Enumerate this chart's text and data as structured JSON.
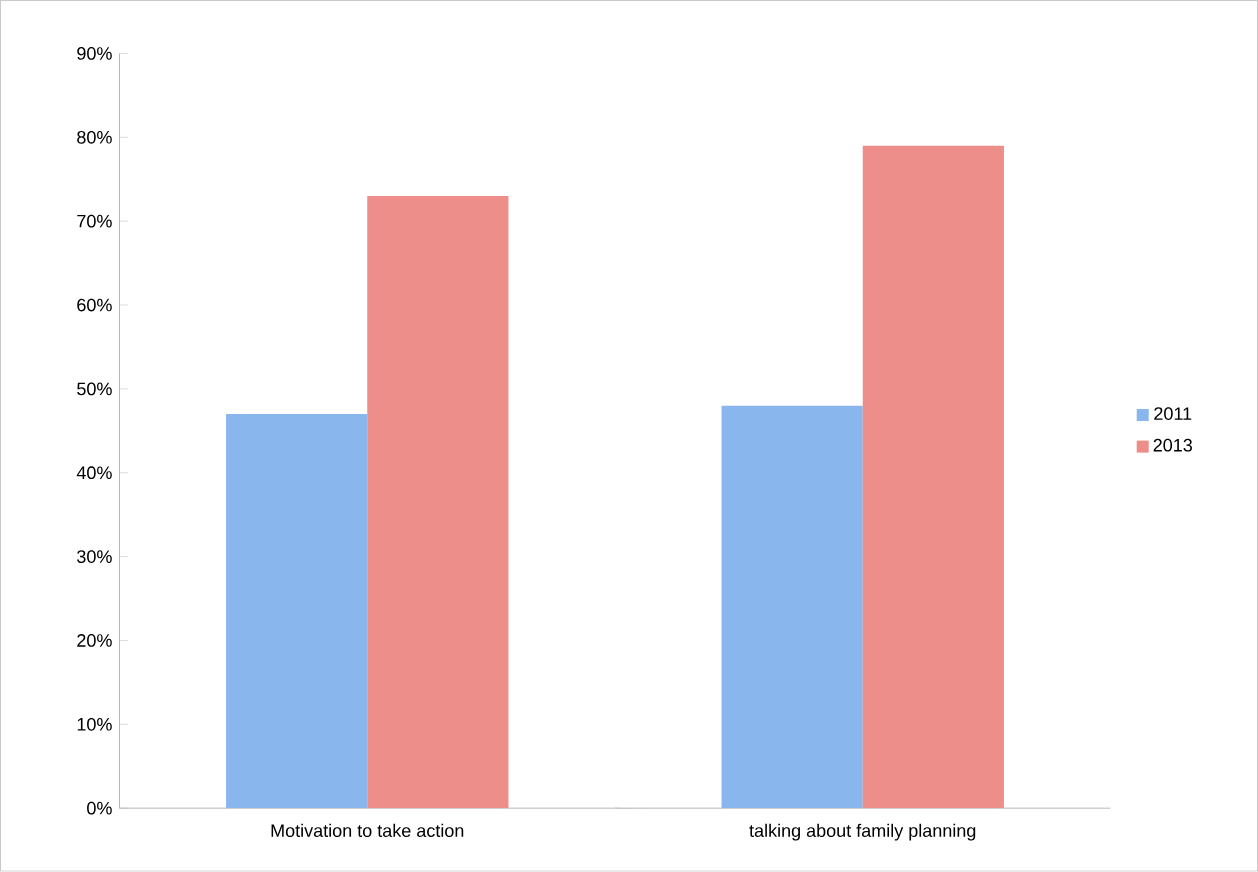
{
  "chart_data": {
    "type": "bar",
    "categories": [
      "Motivation to take action",
      "talking about family planning"
    ],
    "series": [
      {
        "name": "2011",
        "color": "#8ab6ee",
        "values": [
          47,
          48
        ]
      },
      {
        "name": "2013",
        "color": "#ee8e8a",
        "values": [
          73,
          79
        ]
      }
    ],
    "ylim": [
      0,
      90
    ],
    "yticks": [
      {
        "value": 0,
        "label": "0%"
      },
      {
        "value": 10,
        "label": "10%"
      },
      {
        "value": 20,
        "label": "20%"
      },
      {
        "value": 30,
        "label": "30%"
      },
      {
        "value": 40,
        "label": "40%"
      },
      {
        "value": 50,
        "label": "50%"
      },
      {
        "value": 60,
        "label": "60%"
      },
      {
        "value": 70,
        "label": "70%"
      },
      {
        "value": 80,
        "label": "80%"
      },
      {
        "value": 90,
        "label": "90%"
      }
    ],
    "grid": false,
    "legend": "right"
  }
}
